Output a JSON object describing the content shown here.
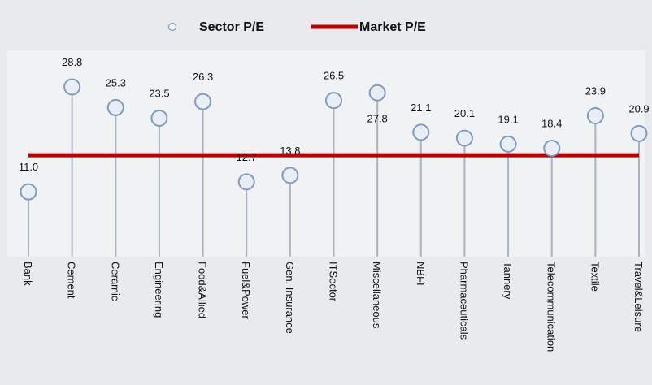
{
  "chart_data": {
    "type": "lollipop",
    "categories": [
      "Bank",
      "Cement",
      "Ceramic",
      "Engineering",
      "Food&Allied",
      "Fuel&Power",
      "Gen. Insurance",
      "ITSector",
      "Miscellaneous",
      "NBFI",
      "Pharmaceuticals",
      "Tannery",
      "Telecommunication",
      "Textile",
      "Travel&Leisure"
    ],
    "series": [
      {
        "name": "Sector P/E",
        "color": "#7f9bbd",
        "values": [
          11.0,
          28.8,
          25.3,
          23.5,
          26.3,
          12.7,
          13.8,
          26.5,
          27.8,
          21.1,
          20.1,
          19.1,
          18.4,
          23.9,
          20.9
        ],
        "value_labels": [
          "11.0",
          "28.8",
          "25.3",
          "23.5",
          "26.3",
          "12.7",
          "13.8",
          "26.5",
          "27.8",
          "21.1",
          "20.1",
          "19.1",
          "18.4",
          "23.9",
          "20.9"
        ]
      },
      {
        "name": "Market P/E",
        "color": "#c00000",
        "values": [
          17.2,
          17.2,
          17.2,
          17.2,
          17.2,
          17.2,
          17.2,
          17.2,
          17.2,
          17.2,
          17.2,
          17.2,
          17.2,
          17.2,
          17.2
        ]
      }
    ],
    "ylim": [
      0,
      35
    ]
  }
}
